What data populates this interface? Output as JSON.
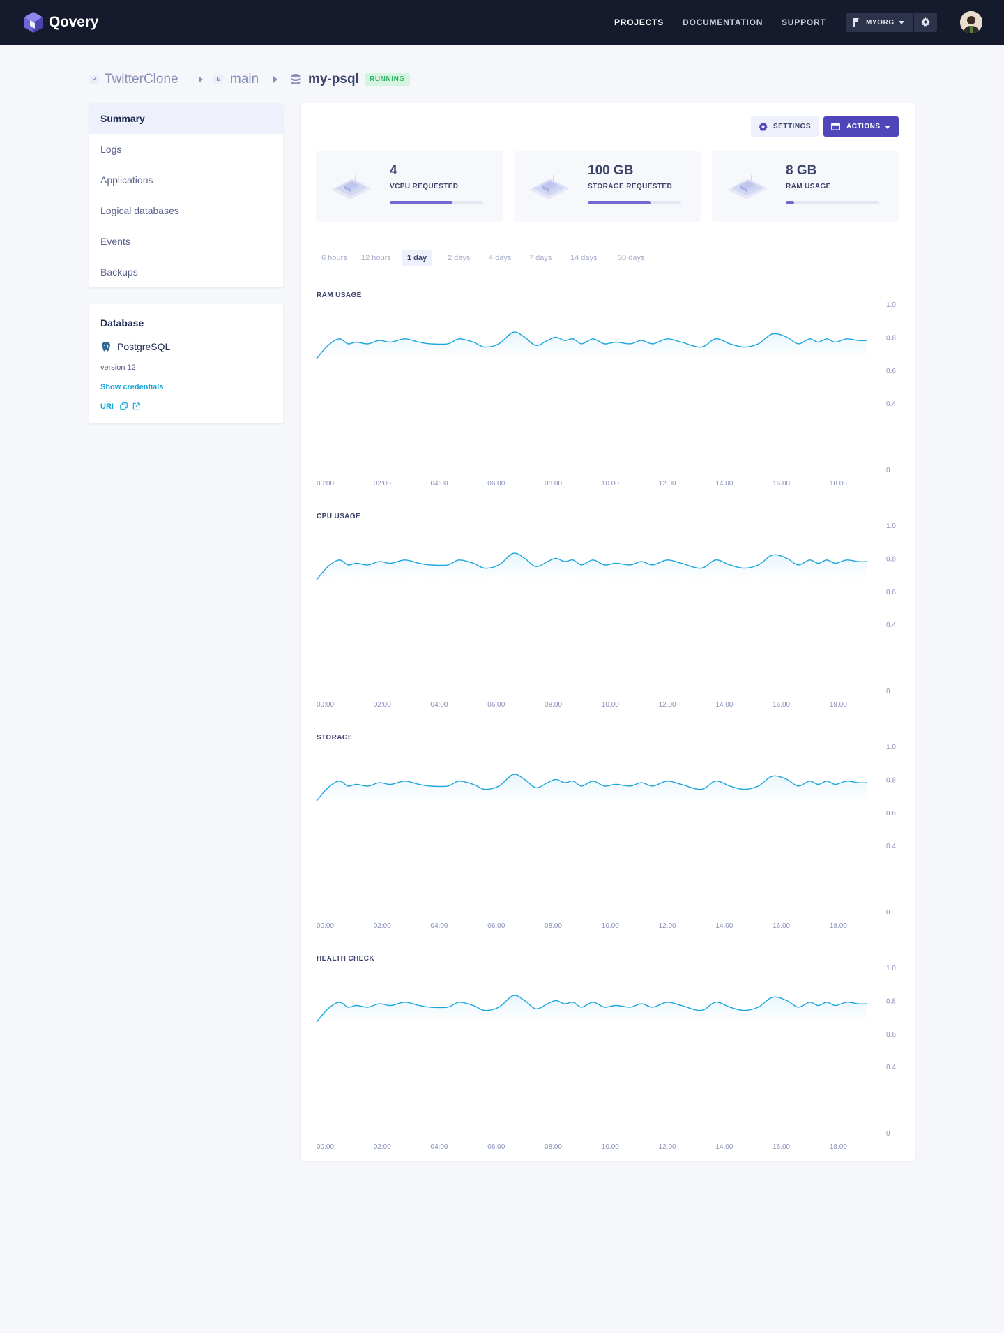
{
  "brand": {
    "name": "Qovery",
    "colors": {
      "primary": "#5046b9",
      "topbar": "#151b2d",
      "line": "#1aa6dc",
      "running": "#2fae63"
    }
  },
  "nav": {
    "projects": "PROJECTS",
    "documentation": "DOCUMENTATION",
    "support": "SUPPORT",
    "active": "PROJECTS"
  },
  "org": {
    "name": "MYORG"
  },
  "breadcrumb": {
    "project_badge": "P",
    "project": "TwitterClone",
    "env_badge": "E",
    "environment": "main",
    "database": "my-psql",
    "status": "RUNNING"
  },
  "sidebar": {
    "items": [
      {
        "label": "Summary",
        "active": true
      },
      {
        "label": "Logs",
        "active": false
      },
      {
        "label": "Applications",
        "active": false
      },
      {
        "label": "Logical databases",
        "active": false
      },
      {
        "label": "Events",
        "active": false
      },
      {
        "label": "Backups",
        "active": false
      }
    ]
  },
  "database_card": {
    "title": "Database",
    "engine": "PostgreSQL",
    "version": "version 12",
    "show_credentials": "Show credentials",
    "uri": "URI"
  },
  "toolbar": {
    "settings": "SETTINGS",
    "actions": "ACTIONS"
  },
  "stats": [
    {
      "value": "4",
      "label": "VCPU REQUESTED",
      "fill": 0.67
    },
    {
      "value": "100 GB",
      "label": "STORAGE REQUESTED",
      "fill": 0.67
    },
    {
      "value": "8 GB",
      "label": "RAM USAGE",
      "fill": 0.09
    }
  ],
  "ranges": {
    "items": [
      "6 hours",
      "12 hours",
      "1 day",
      "2 days",
      "4 days",
      "7 days",
      "14 days",
      "30 days"
    ],
    "active": "1 day"
  },
  "chart_data": [
    {
      "type": "line",
      "title": "RAM USAGE",
      "x_ticks": [
        "00:00",
        "02:00",
        "04:00",
        "06:00",
        "08.00",
        "10.00",
        "12.00",
        "14.00",
        "16.00",
        "18.00"
      ],
      "y_ticks": [
        "1.0",
        "0.8",
        "0.6",
        "0.4",
        "0"
      ],
      "ylim": [
        0,
        1.0
      ],
      "xlim": [
        0,
        19.3
      ],
      "grid": false,
      "area_fill": true,
      "points": [
        [
          0,
          0.67
        ],
        [
          0.4,
          0.75
        ],
        [
          0.8,
          0.79
        ],
        [
          1.1,
          0.76
        ],
        [
          1.4,
          0.77
        ],
        [
          1.8,
          0.76
        ],
        [
          2.2,
          0.78
        ],
        [
          2.6,
          0.77
        ],
        [
          3.1,
          0.79
        ],
        [
          3.6,
          0.77
        ],
        [
          4.0,
          0.76
        ],
        [
          4.6,
          0.76
        ],
        [
          5.0,
          0.79
        ],
        [
          5.5,
          0.77
        ],
        [
          5.9,
          0.74
        ],
        [
          6.4,
          0.76
        ],
        [
          6.9,
          0.83
        ],
        [
          7.3,
          0.8
        ],
        [
          7.7,
          0.75
        ],
        [
          8.1,
          0.78
        ],
        [
          8.4,
          0.8
        ],
        [
          8.7,
          0.78
        ],
        [
          9.0,
          0.79
        ],
        [
          9.3,
          0.76
        ],
        [
          9.7,
          0.79
        ],
        [
          10.1,
          0.76
        ],
        [
          10.5,
          0.77
        ],
        [
          11.0,
          0.76
        ],
        [
          11.4,
          0.78
        ],
        [
          11.8,
          0.76
        ],
        [
          12.3,
          0.79
        ],
        [
          12.8,
          0.77
        ],
        [
          13.5,
          0.74
        ],
        [
          14.0,
          0.79
        ],
        [
          14.5,
          0.76
        ],
        [
          15.0,
          0.74
        ],
        [
          15.5,
          0.76
        ],
        [
          16.0,
          0.82
        ],
        [
          16.5,
          0.8
        ],
        [
          16.9,
          0.76
        ],
        [
          17.3,
          0.79
        ],
        [
          17.6,
          0.77
        ],
        [
          17.9,
          0.79
        ],
        [
          18.2,
          0.77
        ],
        [
          18.6,
          0.79
        ],
        [
          19.0,
          0.78
        ],
        [
          19.3,
          0.78
        ]
      ]
    },
    {
      "type": "line",
      "title": "CPU USAGE",
      "x_ticks": [
        "00:00",
        "02:00",
        "04:00",
        "06:00",
        "08.00",
        "10.00",
        "12.00",
        "14.00",
        "16.00",
        "18.00"
      ],
      "y_ticks": [
        "1.0",
        "0.8",
        "0.6",
        "0.4",
        "0"
      ],
      "ylim": [
        0,
        1.0
      ],
      "xlim": [
        0,
        19.3
      ],
      "grid": false,
      "area_fill": true,
      "points": [
        [
          0,
          0.67
        ],
        [
          0.4,
          0.75
        ],
        [
          0.8,
          0.79
        ],
        [
          1.1,
          0.76
        ],
        [
          1.4,
          0.77
        ],
        [
          1.8,
          0.76
        ],
        [
          2.2,
          0.78
        ],
        [
          2.6,
          0.77
        ],
        [
          3.1,
          0.79
        ],
        [
          3.6,
          0.77
        ],
        [
          4.0,
          0.76
        ],
        [
          4.6,
          0.76
        ],
        [
          5.0,
          0.79
        ],
        [
          5.5,
          0.77
        ],
        [
          5.9,
          0.74
        ],
        [
          6.4,
          0.76
        ],
        [
          6.9,
          0.83
        ],
        [
          7.3,
          0.8
        ],
        [
          7.7,
          0.75
        ],
        [
          8.1,
          0.78
        ],
        [
          8.4,
          0.8
        ],
        [
          8.7,
          0.78
        ],
        [
          9.0,
          0.79
        ],
        [
          9.3,
          0.76
        ],
        [
          9.7,
          0.79
        ],
        [
          10.1,
          0.76
        ],
        [
          10.5,
          0.77
        ],
        [
          11.0,
          0.76
        ],
        [
          11.4,
          0.78
        ],
        [
          11.8,
          0.76
        ],
        [
          12.3,
          0.79
        ],
        [
          12.8,
          0.77
        ],
        [
          13.5,
          0.74
        ],
        [
          14.0,
          0.79
        ],
        [
          14.5,
          0.76
        ],
        [
          15.0,
          0.74
        ],
        [
          15.5,
          0.76
        ],
        [
          16.0,
          0.82
        ],
        [
          16.5,
          0.8
        ],
        [
          16.9,
          0.76
        ],
        [
          17.3,
          0.79
        ],
        [
          17.6,
          0.77
        ],
        [
          17.9,
          0.79
        ],
        [
          18.2,
          0.77
        ],
        [
          18.6,
          0.79
        ],
        [
          19.0,
          0.78
        ],
        [
          19.3,
          0.78
        ]
      ]
    },
    {
      "type": "line",
      "title": "STORAGE",
      "x_ticks": [
        "00:00",
        "02:00",
        "04:00",
        "06:00",
        "08.00",
        "10.00",
        "12.00",
        "14.00",
        "16.00",
        "18.00"
      ],
      "y_ticks": [
        "1.0",
        "0.8",
        "0.6",
        "0.4",
        "0"
      ],
      "ylim": [
        0,
        1.0
      ],
      "xlim": [
        0,
        19.3
      ],
      "grid": false,
      "area_fill": true,
      "points": [
        [
          0,
          0.67
        ],
        [
          0.4,
          0.75
        ],
        [
          0.8,
          0.79
        ],
        [
          1.1,
          0.76
        ],
        [
          1.4,
          0.77
        ],
        [
          1.8,
          0.76
        ],
        [
          2.2,
          0.78
        ],
        [
          2.6,
          0.77
        ],
        [
          3.1,
          0.79
        ],
        [
          3.6,
          0.77
        ],
        [
          4.0,
          0.76
        ],
        [
          4.6,
          0.76
        ],
        [
          5.0,
          0.79
        ],
        [
          5.5,
          0.77
        ],
        [
          5.9,
          0.74
        ],
        [
          6.4,
          0.76
        ],
        [
          6.9,
          0.83
        ],
        [
          7.3,
          0.8
        ],
        [
          7.7,
          0.75
        ],
        [
          8.1,
          0.78
        ],
        [
          8.4,
          0.8
        ],
        [
          8.7,
          0.78
        ],
        [
          9.0,
          0.79
        ],
        [
          9.3,
          0.76
        ],
        [
          9.7,
          0.79
        ],
        [
          10.1,
          0.76
        ],
        [
          10.5,
          0.77
        ],
        [
          11.0,
          0.76
        ],
        [
          11.4,
          0.78
        ],
        [
          11.8,
          0.76
        ],
        [
          12.3,
          0.79
        ],
        [
          12.8,
          0.77
        ],
        [
          13.5,
          0.74
        ],
        [
          14.0,
          0.79
        ],
        [
          14.5,
          0.76
        ],
        [
          15.0,
          0.74
        ],
        [
          15.5,
          0.76
        ],
        [
          16.0,
          0.82
        ],
        [
          16.5,
          0.8
        ],
        [
          16.9,
          0.76
        ],
        [
          17.3,
          0.79
        ],
        [
          17.6,
          0.77
        ],
        [
          17.9,
          0.79
        ],
        [
          18.2,
          0.77
        ],
        [
          18.6,
          0.79
        ],
        [
          19.0,
          0.78
        ],
        [
          19.3,
          0.78
        ]
      ]
    },
    {
      "type": "line",
      "title": "HEALTH CHECK",
      "x_ticks": [
        "00:00",
        "02:00",
        "04:00",
        "06:00",
        "08.00",
        "10.00",
        "12.00",
        "14.00",
        "16.00",
        "18.00"
      ],
      "y_ticks": [
        "1.0",
        "0.8",
        "0.6",
        "0.4",
        "0"
      ],
      "ylim": [
        0,
        1.0
      ],
      "xlim": [
        0,
        19.3
      ],
      "grid": false,
      "area_fill": true,
      "points": [
        [
          0,
          0.67
        ],
        [
          0.4,
          0.75
        ],
        [
          0.8,
          0.79
        ],
        [
          1.1,
          0.76
        ],
        [
          1.4,
          0.77
        ],
        [
          1.8,
          0.76
        ],
        [
          2.2,
          0.78
        ],
        [
          2.6,
          0.77
        ],
        [
          3.1,
          0.79
        ],
        [
          3.6,
          0.77
        ],
        [
          4.0,
          0.76
        ],
        [
          4.6,
          0.76
        ],
        [
          5.0,
          0.79
        ],
        [
          5.5,
          0.77
        ],
        [
          5.9,
          0.74
        ],
        [
          6.4,
          0.76
        ],
        [
          6.9,
          0.83
        ],
        [
          7.3,
          0.8
        ],
        [
          7.7,
          0.75
        ],
        [
          8.1,
          0.78
        ],
        [
          8.4,
          0.8
        ],
        [
          8.7,
          0.78
        ],
        [
          9.0,
          0.79
        ],
        [
          9.3,
          0.76
        ],
        [
          9.7,
          0.79
        ],
        [
          10.1,
          0.76
        ],
        [
          10.5,
          0.77
        ],
        [
          11.0,
          0.76
        ],
        [
          11.4,
          0.78
        ],
        [
          11.8,
          0.76
        ],
        [
          12.3,
          0.79
        ],
        [
          12.8,
          0.77
        ],
        [
          13.5,
          0.74
        ],
        [
          14.0,
          0.79
        ],
        [
          14.5,
          0.76
        ],
        [
          15.0,
          0.74
        ],
        [
          15.5,
          0.76
        ],
        [
          16.0,
          0.82
        ],
        [
          16.5,
          0.8
        ],
        [
          16.9,
          0.76
        ],
        [
          17.3,
          0.79
        ],
        [
          17.6,
          0.77
        ],
        [
          17.9,
          0.79
        ],
        [
          18.2,
          0.77
        ],
        [
          18.6,
          0.79
        ],
        [
          19.0,
          0.78
        ],
        [
          19.3,
          0.78
        ]
      ]
    }
  ]
}
